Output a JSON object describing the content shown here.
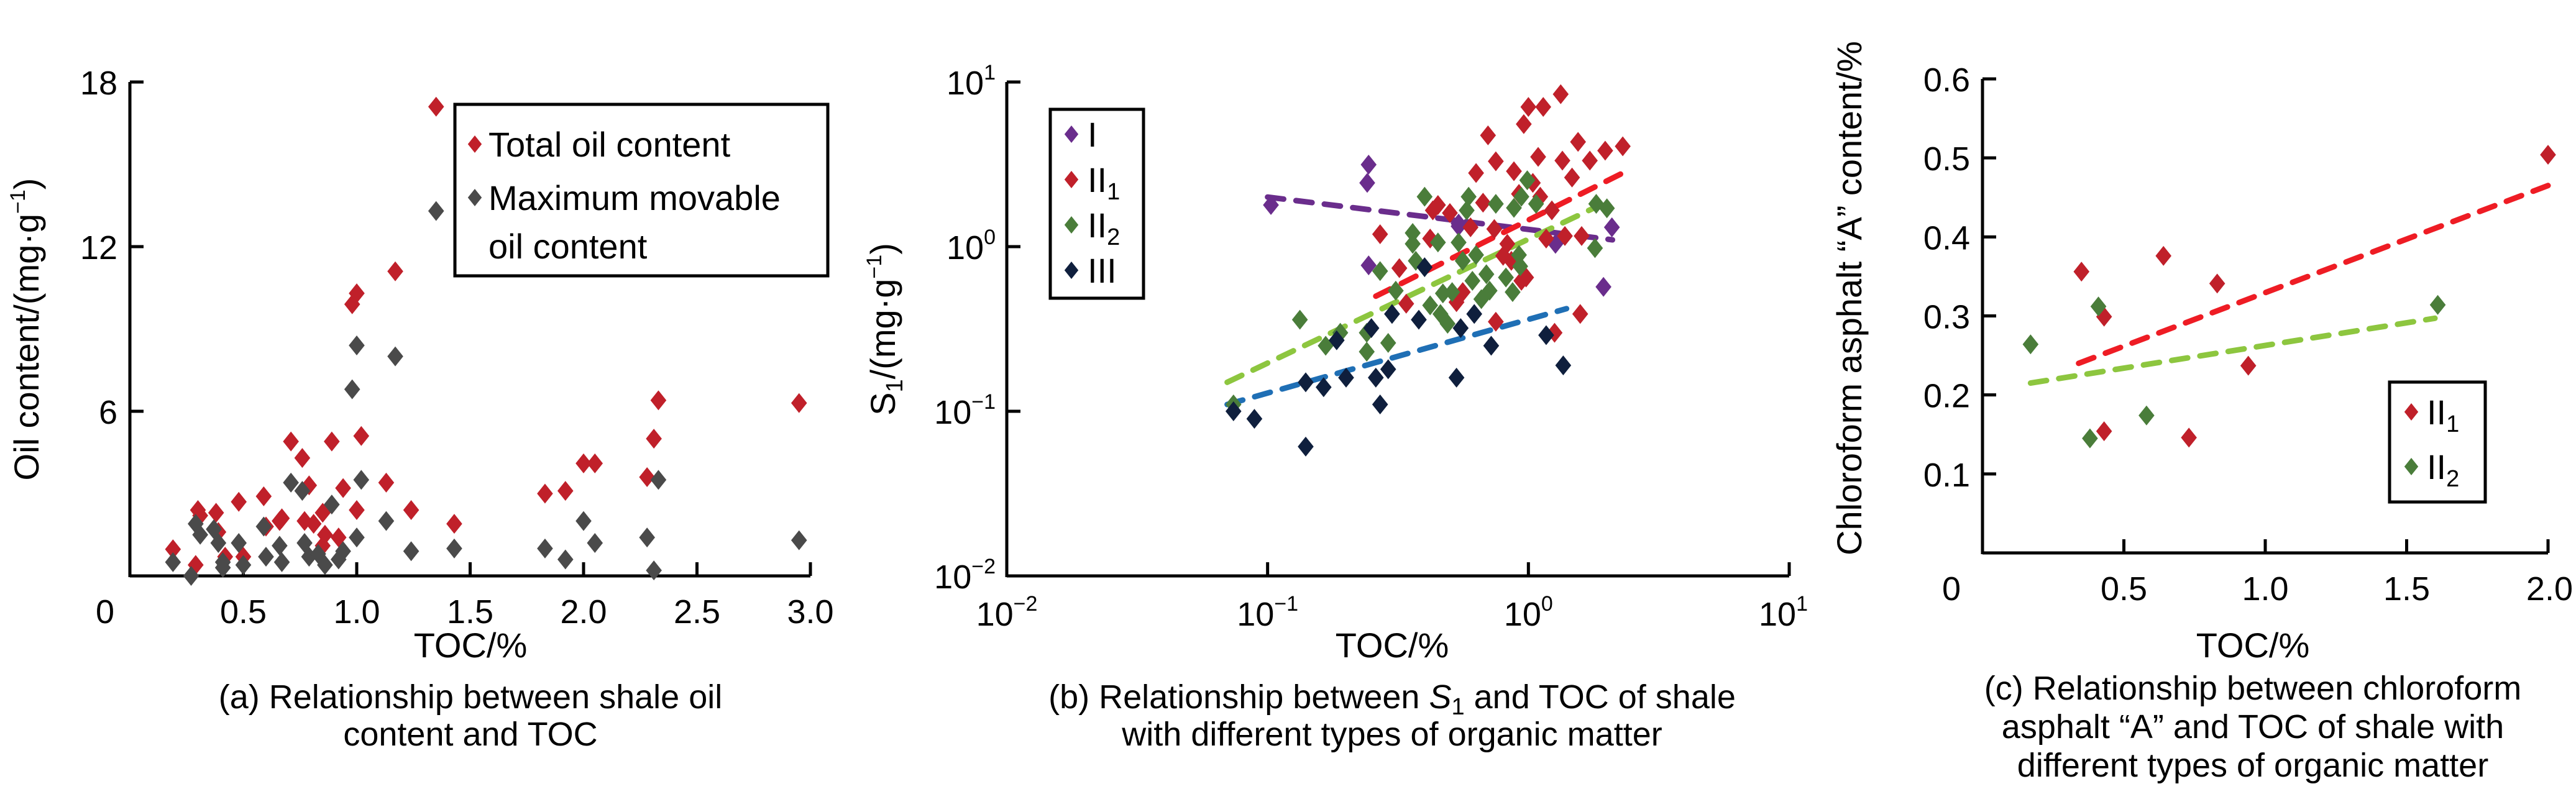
{
  "chart_data": [
    {
      "id": "a",
      "type": "scatter",
      "caption_lines": [
        "(a) Relationship between shale oil",
        "content and TOC"
      ],
      "xlabel": "TOC/%",
      "ylabel": "Oil content/(mg·g⁻¹)",
      "xscale": "linear",
      "yscale": "linear",
      "xlim": [
        0,
        3.0
      ],
      "ylim": [
        0,
        18
      ],
      "xticks": [
        0,
        0.5,
        1.0,
        1.5,
        2.0,
        2.5,
        3.0
      ],
      "xtick_labels": [
        "0",
        "0.5",
        "1.0",
        "1.5",
        "2.0",
        "2.5",
        "3.0"
      ],
      "yticks": [
        6,
        12,
        18
      ],
      "ytick_labels": [
        "6",
        "12",
        "18"
      ],
      "legend_position": "top-right",
      "series": [
        {
          "name": "Total oil content",
          "color": "#c0202a",
          "points": [
            [
              0.19,
              0.97
            ],
            [
              0.29,
              0.4
            ],
            [
              0.3,
              2.4
            ],
            [
              0.31,
              2.2
            ],
            [
              0.38,
              2.3
            ],
            [
              0.39,
              1.6
            ],
            [
              0.42,
              0.7
            ],
            [
              0.48,
              2.7
            ],
            [
              0.5,
              0.7
            ],
            [
              0.59,
              2.9
            ],
            [
              0.6,
              1.8
            ],
            [
              0.66,
              2.0
            ],
            [
              0.67,
              2.1
            ],
            [
              0.71,
              4.9
            ],
            [
              0.76,
              4.3
            ],
            [
              0.77,
              2.0
            ],
            [
              0.79,
              3.3
            ],
            [
              0.81,
              1.9
            ],
            [
              0.85,
              2.3
            ],
            [
              0.85,
              1.1
            ],
            [
              0.86,
              1.5
            ],
            [
              0.89,
              4.9
            ],
            [
              0.92,
              1.4
            ],
            [
              0.94,
              3.2
            ],
            [
              0.98,
              9.9
            ],
            [
              1.0,
              2.4
            ],
            [
              1.0,
              10.3
            ],
            [
              1.02,
              5.1
            ],
            [
              1.13,
              3.4
            ],
            [
              1.17,
              11.1
            ],
            [
              1.24,
              2.4
            ],
            [
              1.35,
              17.1
            ],
            [
              1.43,
              1.9
            ],
            [
              1.83,
              3.0
            ],
            [
              1.92,
              3.1
            ],
            [
              2.0,
              4.1
            ],
            [
              2.05,
              4.1
            ],
            [
              2.28,
              3.6
            ],
            [
              2.31,
              5.0
            ],
            [
              2.33,
              6.4
            ],
            [
              2.95,
              6.3
            ]
          ]
        },
        {
          "name": "Maximum movable oil content",
          "legend_lines": [
            "Maximum movable",
            "oil content"
          ],
          "color": "#4a4a4a",
          "points": [
            [
              0.19,
              0.5
            ],
            [
              0.27,
              0.0
            ],
            [
              0.29,
              1.9
            ],
            [
              0.31,
              1.5
            ],
            [
              0.37,
              1.7
            ],
            [
              0.39,
              1.2
            ],
            [
              0.41,
              0.5
            ],
            [
              0.41,
              0.3
            ],
            [
              0.48,
              1.2
            ],
            [
              0.5,
              0.4
            ],
            [
              0.59,
              1.8
            ],
            [
              0.6,
              0.7
            ],
            [
              0.66,
              1.1
            ],
            [
              0.67,
              0.5
            ],
            [
              0.71,
              3.4
            ],
            [
              0.76,
              3.1
            ],
            [
              0.77,
              1.2
            ],
            [
              0.79,
              0.7
            ],
            [
              0.83,
              0.8
            ],
            [
              0.86,
              0.4
            ],
            [
              0.89,
              2.6
            ],
            [
              0.92,
              0.6
            ],
            [
              0.94,
              0.9
            ],
            [
              0.98,
              6.8
            ],
            [
              1.0,
              1.4
            ],
            [
              1.0,
              8.4
            ],
            [
              1.02,
              3.5
            ],
            [
              1.13,
              2.0
            ],
            [
              1.17,
              8.0
            ],
            [
              1.24,
              0.9
            ],
            [
              1.35,
              13.3
            ],
            [
              1.43,
              1.0
            ],
            [
              1.83,
              1.0
            ],
            [
              1.92,
              0.6
            ],
            [
              2.0,
              2.0
            ],
            [
              2.05,
              1.2
            ],
            [
              2.28,
              1.4
            ],
            [
              2.31,
              0.2
            ],
            [
              2.33,
              3.5
            ],
            [
              2.95,
              1.3
            ]
          ]
        }
      ]
    },
    {
      "id": "b",
      "type": "scatter",
      "caption_lines": [
        "(b) Relationship between S₁ and TOC of shale",
        "with different types of organic matter"
      ],
      "xlabel": "TOC/%",
      "ylabel": "S₁/(mg·g⁻¹)",
      "xscale": "log",
      "yscale": "log",
      "xlim": [
        0.01,
        10
      ],
      "ylim": [
        0.01,
        10
      ],
      "xticks": [
        0.01,
        0.1,
        1,
        10
      ],
      "xtick_labels": [
        {
          "base": "10",
          "exp": "−2"
        },
        {
          "base": "10",
          "exp": "−1"
        },
        {
          "base": "10",
          "exp": "0"
        },
        {
          "base": "10",
          "exp": "1"
        }
      ],
      "yticks": [
        0.01,
        0.1,
        1,
        10
      ],
      "ytick_labels": [
        {
          "base": "10",
          "exp": "−2"
        },
        {
          "base": "10",
          "exp": "−1"
        },
        {
          "base": "10",
          "exp": "0"
        },
        {
          "base": "10",
          "exp": "1"
        }
      ],
      "legend_position": "top-left",
      "series": [
        {
          "name": "I",
          "label_base": "I",
          "label_sub": "",
          "color": "#6a2d8c",
          "trend_color": "#6a2d8c",
          "trendline": [
            [
              0.1,
              2.0
            ],
            [
              2.1,
              1.1
            ]
          ],
          "points": [
            [
              0.103,
              1.79
            ],
            [
              0.244,
              3.15
            ],
            [
              0.241,
              2.44
            ],
            [
              0.244,
              0.77
            ],
            [
              0.54,
              1.38
            ],
            [
              0.54,
              1.33
            ],
            [
              1.27,
              1.04
            ],
            [
              1.94,
              0.57
            ],
            [
              2.09,
              1.31
            ]
          ]
        },
        {
          "name": "II1",
          "label_base": "II",
          "label_sub": "1",
          "color": "#c0202a",
          "trend_color": "#ee1c24",
          "trendline": [
            [
              0.26,
              0.5
            ],
            [
              2.3,
              2.8
            ]
          ],
          "points": [
            [
              0.27,
              1.19
            ],
            [
              0.32,
              0.74
            ],
            [
              0.34,
              0.45
            ],
            [
              0.42,
              1.12
            ],
            [
              0.43,
              1.66
            ],
            [
              0.45,
              1.79
            ],
            [
              0.5,
              1.6
            ],
            [
              0.53,
              0.46
            ],
            [
              0.56,
              0.53
            ],
            [
              0.6,
              1.31
            ],
            [
              0.63,
              2.8
            ],
            [
              0.67,
              1.85
            ],
            [
              0.7,
              4.74
            ],
            [
              0.74,
              1.28
            ],
            [
              0.75,
              3.3
            ],
            [
              0.75,
              0.35
            ],
            [
              0.8,
              0.88
            ],
            [
              0.83,
              1.04
            ],
            [
              0.86,
              0.82
            ],
            [
              0.88,
              2.87
            ],
            [
              0.92,
              2.09
            ],
            [
              0.94,
              0.62
            ],
            [
              0.96,
              5.55
            ],
            [
              0.98,
              0.65
            ],
            [
              1.0,
              7.06
            ],
            [
              1.04,
              2.44
            ],
            [
              1.09,
              3.51
            ],
            [
              1.11,
              2.01
            ],
            [
              1.14,
              7.06
            ],
            [
              1.17,
              1.12
            ],
            [
              1.23,
              1.66
            ],
            [
              1.26,
              0.3
            ],
            [
              1.33,
              8.43
            ],
            [
              1.35,
              3.33
            ],
            [
              1.38,
              1.16
            ],
            [
              1.47,
              2.63
            ],
            [
              1.55,
              4.33
            ],
            [
              1.58,
              0.39
            ],
            [
              1.6,
              1.16
            ],
            [
              1.72,
              3.33
            ],
            [
              1.97,
              3.83
            ],
            [
              2.3,
              4.07
            ]
          ]
        },
        {
          "name": "II2",
          "label_base": "II",
          "label_sub": "2",
          "color": "#4a7d3a",
          "trend_color": "#8dc63f",
          "trendline": [
            [
              0.07,
              0.15
            ],
            [
              1.9,
              1.8
            ]
          ],
          "points": [
            [
              0.074,
              0.11
            ],
            [
              0.133,
              0.36
            ],
            [
              0.167,
              0.25
            ],
            [
              0.19,
              0.3
            ],
            [
              0.24,
              0.23
            ],
            [
              0.24,
              0.3
            ],
            [
              0.27,
              0.71
            ],
            [
              0.29,
              0.26
            ],
            [
              0.31,
              0.54
            ],
            [
              0.36,
              1.21
            ],
            [
              0.36,
              1.04
            ],
            [
              0.37,
              0.82
            ],
            [
              0.4,
              2.01
            ],
            [
              0.42,
              0.44
            ],
            [
              0.45,
              1.06
            ],
            [
              0.46,
              0.39
            ],
            [
              0.47,
              0.52
            ],
            [
              0.49,
              0.34
            ],
            [
              0.51,
              0.53
            ],
            [
              0.54,
              1.06
            ],
            [
              0.56,
              0.82
            ],
            [
              0.58,
              1.66
            ],
            [
              0.59,
              2.01
            ],
            [
              0.61,
              0.62
            ],
            [
              0.63,
              0.89
            ],
            [
              0.66,
              0.48
            ],
            [
              0.69,
              0.68
            ],
            [
              0.71,
              0.54
            ],
            [
              0.75,
              1.82
            ],
            [
              0.82,
              0.65
            ],
            [
              0.87,
              0.53
            ],
            [
              0.88,
              1.72
            ],
            [
              0.92,
              0.89
            ],
            [
              0.93,
              0.76
            ],
            [
              0.94,
              2.01
            ],
            [
              0.99,
              2.53
            ],
            [
              1.07,
              1.82
            ],
            [
              1.8,
              0.98
            ],
            [
              1.82,
              1.82
            ],
            [
              2.0,
              1.71
            ]
          ]
        },
        {
          "name": "III",
          "label_base": "III",
          "label_sub": "",
          "color": "#0f1f3d",
          "trend_color": "#1f6fb5",
          "trendline": [
            [
              0.07,
              0.11
            ],
            [
              1.4,
              0.42
            ]
          ],
          "points": [
            [
              0.074,
              0.1
            ],
            [
              0.089,
              0.09
            ],
            [
              0.14,
              0.061
            ],
            [
              0.14,
              0.15
            ],
            [
              0.164,
              0.14
            ],
            [
              0.184,
              0.27
            ],
            [
              0.2,
              0.16
            ],
            [
              0.25,
              0.32
            ],
            [
              0.26,
              0.16
            ],
            [
              0.27,
              0.11
            ],
            [
              0.29,
              0.18
            ],
            [
              0.3,
              0.39
            ],
            [
              0.38,
              0.36
            ],
            [
              0.4,
              0.75
            ],
            [
              0.53,
              0.16
            ],
            [
              0.55,
              0.32
            ],
            [
              0.62,
              0.39
            ],
            [
              0.72,
              0.25
            ],
            [
              1.17,
              0.29
            ],
            [
              1.36,
              0.19
            ]
          ]
        }
      ]
    },
    {
      "id": "c",
      "type": "scatter",
      "caption_lines": [
        "(c) Relationship between chloroform",
        "asphalt “A” and TOC of shale with",
        "different types of organic matter"
      ],
      "xlabel": "TOC/%",
      "ylabel": "Chloroform asphalt “A” content/%",
      "xscale": "linear",
      "yscale": "linear",
      "xlim": [
        0,
        2.0
      ],
      "ylim": [
        0,
        0.6
      ],
      "xticks": [
        0,
        0.5,
        1.0,
        1.5,
        2.0
      ],
      "xtick_labels": [
        "0",
        "0.5",
        "1.0",
        "1.5",
        "2.0"
      ],
      "yticks": [
        0.1,
        0.2,
        0.3,
        0.4,
        0.5,
        0.6
      ],
      "ytick_labels": [
        "0.1",
        "0.2",
        "0.3",
        "0.4",
        "0.5",
        "0.6"
      ],
      "legend_position": "bottom-right",
      "series": [
        {
          "name": "II1",
          "label_base": "II",
          "label_sub": "1",
          "color": "#c0202a",
          "trend_color": "#ee1c24",
          "trendline": [
            [
              0.34,
              0.24
            ],
            [
              2.0,
              0.465
            ]
          ],
          "points": [
            [
              0.35,
              0.356
            ],
            [
              0.64,
              0.376
            ],
            [
              0.83,
              0.341
            ],
            [
              0.43,
              0.299
            ],
            [
              0.94,
              0.237
            ],
            [
              0.43,
              0.154
            ],
            [
              0.73,
              0.146
            ],
            [
              2.0,
              0.504
            ]
          ]
        },
        {
          "name": "II2",
          "label_base": "II",
          "label_sub": "2",
          "color": "#4a7d3a",
          "trend_color": "#8dc63f",
          "trendline": [
            [
              0.17,
              0.215
            ],
            [
              1.6,
              0.297
            ]
          ],
          "points": [
            [
              0.17,
              0.264
            ],
            [
              0.41,
              0.312
            ],
            [
              0.38,
              0.145
            ],
            [
              0.58,
              0.174
            ],
            [
              1.61,
              0.314
            ]
          ]
        }
      ]
    }
  ]
}
